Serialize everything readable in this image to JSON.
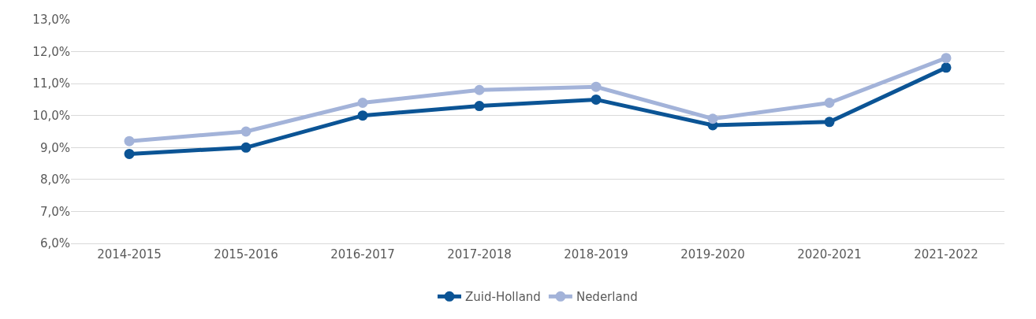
{
  "chart_data": {
    "type": "line",
    "categories": [
      "2014-2015",
      "2015-2016",
      "2016-2017",
      "2017-2018",
      "2018-2019",
      "2019-2020",
      "2020-2021",
      "2021-2022"
    ],
    "series": [
      {
        "name": "Zuid-Holland",
        "color": "#0b5495",
        "values": [
          8.8,
          9.0,
          10.0,
          10.3,
          10.5,
          9.7,
          9.8,
          11.5
        ]
      },
      {
        "name": "Nederland",
        "color": "#a3b3d9",
        "values": [
          9.2,
          9.5,
          10.4,
          10.8,
          10.9,
          9.9,
          10.4,
          11.8
        ]
      }
    ],
    "ylim": [
      6,
      13
    ],
    "yticks": [
      {
        "value": 6,
        "label": "6,0%"
      },
      {
        "value": 7,
        "label": "7,0%"
      },
      {
        "value": 8,
        "label": "8,0%"
      },
      {
        "value": 9,
        "label": "9,0%"
      },
      {
        "value": 10,
        "label": "10,0%"
      },
      {
        "value": 11,
        "label": "11,0%"
      },
      {
        "value": 12,
        "label": "12,0%"
      },
      {
        "value": 13,
        "label": "13,0%"
      }
    ],
    "grid": "y",
    "legend": "bottom",
    "marker": "circle",
    "line_style": "solid"
  }
}
